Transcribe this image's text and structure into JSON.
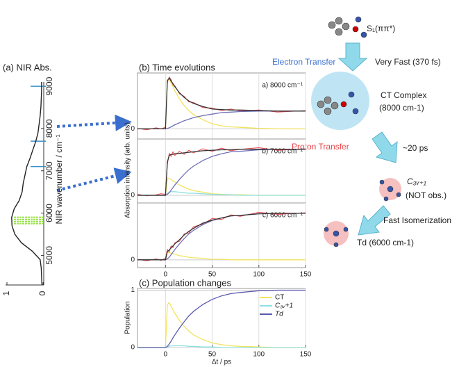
{
  "chart_data": [
    {
      "type": "line",
      "title": "(a) NIR Abs.",
      "ylabel": "NIR wavenumber / cm⁻¹",
      "x": [
        4300,
        4500,
        4700,
        4900,
        5100,
        5300,
        5500,
        5700,
        5900,
        6100,
        6300,
        6500,
        6700,
        6900,
        7100,
        7300,
        7500,
        7700,
        7900,
        8100,
        8300,
        8500,
        8700,
        8900,
        9100
      ],
      "values": [
        0.03,
        0.04,
        0.05,
        0.08,
        0.3,
        0.6,
        0.78,
        0.86,
        0.87,
        0.8,
        0.66,
        0.58,
        0.55,
        0.5,
        0.45,
        0.36,
        0.28,
        0.2,
        0.14,
        0.11,
        0.08,
        0.06,
        0.05,
        0.04,
        0.04
      ],
      "color": "#222222",
      "xlim": [
        4300,
        9100
      ],
      "xticks": [
        5000,
        6000,
        7000,
        8000,
        9000
      ],
      "ylim": [
        1,
        0
      ],
      "yticks": [
        1,
        0
      ],
      "blue_lines": [
        7100,
        7700,
        9000
      ],
      "blue_color": "#3a8fc9",
      "green_lines": [
        5750,
        5800,
        5850,
        5900
      ],
      "green_color": "#9be34a"
    },
    {
      "type": "line",
      "title": "(b) Time evolutions",
      "ylabel": "Absorption intensity (arb. units)",
      "label": "a) 8000 cm⁻¹",
      "x": [
        -30,
        -20,
        -10,
        -5,
        0,
        2,
        4,
        6,
        8,
        10,
        15,
        20,
        25,
        30,
        40,
        50,
        60,
        70,
        80,
        100,
        120,
        150
      ],
      "xlim": [
        -30,
        150
      ],
      "ylim": [
        -0.2,
        1.1
      ],
      "yticks": [
        0
      ],
      "grid": true,
      "series": [
        {
          "color": "#e8454a",
          "values": [
            0.01,
            -0.02,
            0.02,
            0,
            0.03,
            0.9,
            1.02,
            0.97,
            0.86,
            0.85,
            0.69,
            0.64,
            0.53,
            0.52,
            0.42,
            0.41,
            0.36,
            0.39,
            0.35,
            0.37,
            0.33,
            0.36
          ]
        },
        {
          "color": "#f2e35e",
          "values": [
            0,
            0,
            0,
            0,
            0,
            0.94,
            0.98,
            0.9,
            0.83,
            0.75,
            0.59,
            0.46,
            0.36,
            0.28,
            0.18,
            0.1,
            0.06,
            0.04,
            0.03,
            0.01,
            0,
            0
          ]
        },
        {
          "color": "#7070b8",
          "values": [
            0,
            0,
            0,
            0,
            0,
            0.01,
            0.02,
            0.04,
            0.06,
            0.08,
            0.12,
            0.16,
            0.19,
            0.22,
            0.26,
            0.29,
            0.32,
            0.33,
            0.34,
            0.35,
            0.35,
            0.35
          ]
        },
        {
          "color": "#333333",
          "values": [
            0,
            0,
            0,
            0,
            0,
            0.95,
            1.0,
            0.94,
            0.89,
            0.83,
            0.71,
            0.62,
            0.55,
            0.5,
            0.44,
            0.39,
            0.38,
            0.37,
            0.37,
            0.36,
            0.35,
            0.35
          ]
        }
      ]
    },
    {
      "type": "line",
      "label": "b) 7000 cm⁻¹",
      "x": [
        -30,
        -20,
        -10,
        -5,
        0,
        2,
        4,
        6,
        8,
        10,
        15,
        20,
        25,
        30,
        40,
        50,
        60,
        70,
        80,
        100,
        120,
        150
      ],
      "xlim": [
        -30,
        150
      ],
      "ylim": [
        -0.15,
        1.1
      ],
      "yticks": [
        0
      ],
      "grid": true,
      "series": [
        {
          "color": "#e8454a",
          "values": [
            0.02,
            -0.01,
            0.01,
            0.03,
            0.02,
            0.6,
            0.82,
            0.76,
            0.85,
            0.78,
            0.86,
            0.8,
            0.88,
            0.83,
            0.91,
            0.86,
            0.92,
            0.87,
            0.9,
            0.93,
            0.88,
            0.91
          ]
        },
        {
          "color": "#f2e35e",
          "values": [
            0,
            0,
            0,
            0,
            0,
            0.32,
            0.33,
            0.31,
            0.28,
            0.26,
            0.2,
            0.16,
            0.12,
            0.09,
            0.06,
            0.03,
            0.02,
            0.01,
            0.01,
            0,
            0,
            0
          ]
        },
        {
          "color": "#8ee0e0",
          "values": [
            0,
            0,
            0,
            0,
            0,
            0.04,
            0.06,
            0.07,
            0.07,
            0.07,
            0.06,
            0.05,
            0.04,
            0.04,
            0.03,
            0.02,
            0.01,
            0.01,
            0,
            0,
            0,
            0
          ]
        },
        {
          "color": "#7070b8",
          "values": [
            0,
            0,
            0,
            0,
            0,
            0.02,
            0.05,
            0.1,
            0.15,
            0.2,
            0.31,
            0.41,
            0.5,
            0.57,
            0.68,
            0.76,
            0.81,
            0.85,
            0.86,
            0.89,
            0.9,
            0.9
          ]
        },
        {
          "color": "#333333",
          "values": [
            0,
            0,
            0,
            0,
            0,
            0.65,
            0.78,
            0.8,
            0.8,
            0.81,
            0.82,
            0.83,
            0.84,
            0.85,
            0.87,
            0.88,
            0.89,
            0.89,
            0.9,
            0.9,
            0.9,
            0.9
          ]
        }
      ]
    },
    {
      "type": "line",
      "label": "c) 6000 cm⁻¹",
      "x": [
        -30,
        -20,
        -10,
        -5,
        0,
        2,
        4,
        6,
        8,
        10,
        15,
        20,
        25,
        30,
        40,
        50,
        60,
        70,
        80,
        100,
        120,
        150
      ],
      "xlim": [
        -30,
        150
      ],
      "xticks": [
        0,
        50,
        100,
        150
      ],
      "ylim": [
        -0.15,
        1.1
      ],
      "yticks": [
        0
      ],
      "grid": true,
      "series": [
        {
          "color": "#e8454a",
          "values": [
            0.01,
            -0.02,
            0.02,
            -0.01,
            0.03,
            0.2,
            0.15,
            0.27,
            0.24,
            0.33,
            0.36,
            0.5,
            0.52,
            0.64,
            0.69,
            0.8,
            0.78,
            0.87,
            0.84,
            0.92,
            0.88,
            0.91
          ]
        },
        {
          "color": "#f2e35e",
          "values": [
            0,
            0,
            0,
            0,
            0,
            0.14,
            0.14,
            0.13,
            0.12,
            0.11,
            0.08,
            0.07,
            0.05,
            0.04,
            0.03,
            0.01,
            0.01,
            0,
            0,
            0,
            0,
            0
          ]
        },
        {
          "color": "#7070b8",
          "values": [
            0,
            0,
            0,
            0,
            0,
            0.02,
            0.05,
            0.1,
            0.15,
            0.2,
            0.31,
            0.41,
            0.5,
            0.57,
            0.68,
            0.76,
            0.81,
            0.85,
            0.86,
            0.89,
            0.9,
            0.9
          ]
        },
        {
          "color": "#333333",
          "values": [
            0,
            0,
            0,
            0,
            0,
            0.16,
            0.19,
            0.23,
            0.27,
            0.31,
            0.39,
            0.48,
            0.55,
            0.61,
            0.71,
            0.77,
            0.81,
            0.85,
            0.86,
            0.89,
            0.9,
            0.9
          ]
        }
      ]
    },
    {
      "type": "line",
      "title": "(c) Population changes",
      "ylabel": "Population",
      "xlabel": "Δt / ps",
      "x": [
        -30,
        -20,
        -10,
        -5,
        0,
        2,
        4,
        6,
        8,
        10,
        15,
        20,
        25,
        30,
        40,
        50,
        60,
        70,
        80,
        100,
        120,
        150
      ],
      "xlim": [
        -30,
        150
      ],
      "xticks": [
        0,
        50,
        100,
        150
      ],
      "ylim": [
        0,
        1.03
      ],
      "yticks": [
        0,
        1
      ],
      "grid": true,
      "series": [
        {
          "name": "CT",
          "color": "#f2e35e",
          "values": [
            0,
            0,
            0,
            0,
            0,
            0.75,
            0.78,
            0.72,
            0.66,
            0.6,
            0.47,
            0.37,
            0.29,
            0.22,
            0.14,
            0.08,
            0.05,
            0.03,
            0.02,
            0.01,
            0,
            0
          ]
        },
        {
          "name": "C₃ᵥ+1",
          "color": "#8ee0e0",
          "values": [
            0,
            0,
            0,
            0,
            0,
            0.01,
            0.02,
            0.03,
            0.03,
            0.03,
            0.03,
            0.03,
            0.02,
            0.02,
            0.01,
            0.01,
            0,
            0,
            0,
            0,
            0,
            0
          ]
        },
        {
          "name": "Td",
          "color": "#5a5ab0",
          "values": [
            0,
            0,
            0,
            0,
            0,
            0.02,
            0.06,
            0.11,
            0.17,
            0.22,
            0.34,
            0.45,
            0.55,
            0.63,
            0.75,
            0.84,
            0.9,
            0.94,
            0.96,
            0.99,
            1,
            1
          ]
        }
      ]
    }
  ],
  "diagram": {
    "s1": "S₁(ππ*)",
    "electron_transfer": "Electron Transfer",
    "very_fast": "Very Fast (370 fs)",
    "ct_complex": "CT Complex",
    "ct_energy": "(8000 cm-1)",
    "proton_transfer": "Proton Transfer",
    "ps20": "~20 ps",
    "c3v": "C₃ᵥ₊₁",
    "not_obs": "(NOT obs.)",
    "fast_isomerization": "Fast Isomerization",
    "td": "Td (6000 cm-1)"
  }
}
